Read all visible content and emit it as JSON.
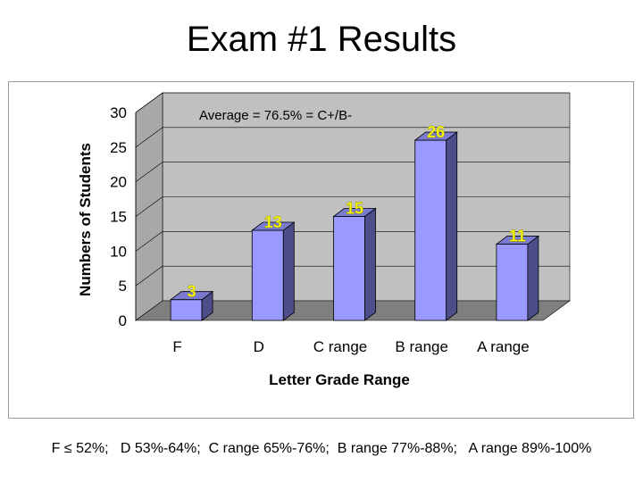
{
  "slide": {
    "title": "Exam #1 Results",
    "footnote": "F ≤ 52%;   D 53%-64%;  C range 65%-76%;  B range 77%-88%;   A range 89%-100%"
  },
  "colors": {
    "bar_front": "#9999ff",
    "bar_side": "#4d4d8a",
    "bar_top": "#7a7ad0",
    "wall": "#c0c0c0",
    "floor": "#7f7f7f",
    "value_label": "#ffff00"
  },
  "chart_data": {
    "type": "bar",
    "categories": [
      "F",
      "D",
      "C range",
      "B range",
      "A range"
    ],
    "values": [
      3,
      13,
      15,
      26,
      11
    ],
    "xlabel": "Letter Grade Range",
    "ylabel": "Numbers of Students",
    "ylim": [
      0,
      30
    ],
    "yticks": [
      0,
      5,
      10,
      15,
      20,
      25,
      30
    ],
    "annotation": "Average = 76.5% = C+/B-",
    "grid": true,
    "three_d": true,
    "data_labels": true
  }
}
